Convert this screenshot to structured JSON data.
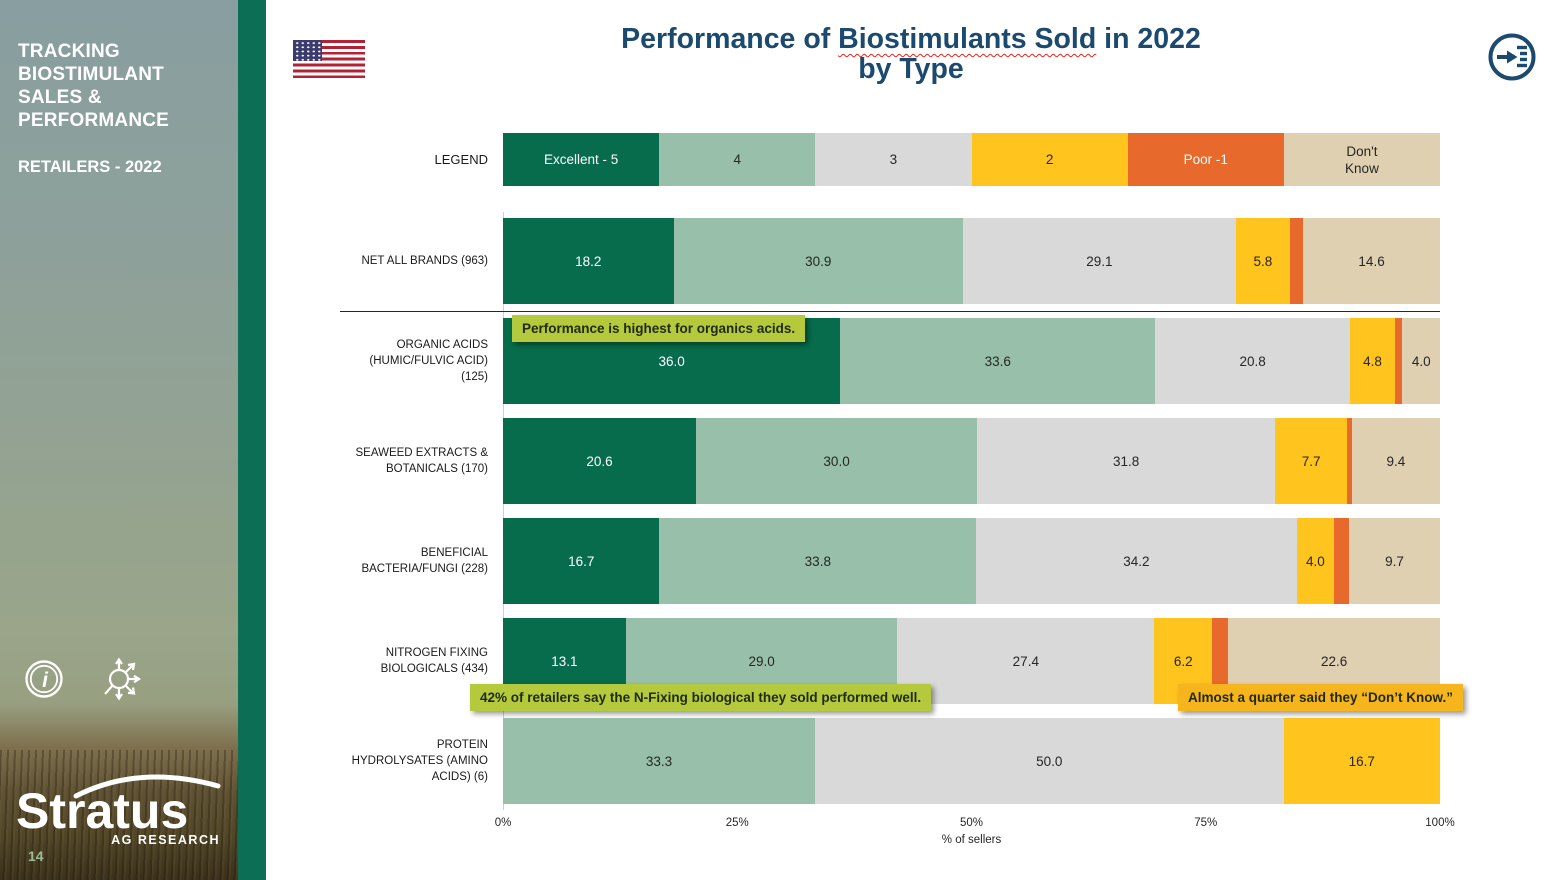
{
  "sidebar": {
    "title_lines": [
      "TRACKING",
      "BIOSTIMULANT",
      "SALES &",
      "PERFORMANCE"
    ],
    "subtitle": "RETAILERS - 2022",
    "logo_text": "Stratus",
    "logo_sub": "AG RESEARCH",
    "page_number": "14",
    "accent_color": "#0C6E54"
  },
  "header": {
    "title_pre": "Performance of ",
    "title_squiggle": "Biostimulants Sold",
    "title_post": " in 2022",
    "title_line2": "by Type",
    "title_color": "#1C4A6E",
    "flag_icon": "us-flag"
  },
  "chart_data": {
    "type": "bar",
    "stacked": true,
    "orientation": "horizontal",
    "title": "Performance of Biostimulants Sold in 2022 by Type",
    "xlabel": "% of sellers",
    "xlim": [
      0,
      100
    ],
    "x_ticks": [
      {
        "label": "0%",
        "pct": 0
      },
      {
        "label": "25%",
        "pct": 25
      },
      {
        "label": "50%",
        "pct": 50
      },
      {
        "label": "75%",
        "pct": 75
      },
      {
        "label": "100%",
        "pct": 100
      }
    ],
    "legend_label": "LEGEND",
    "legend": [
      {
        "key": "excellent",
        "label": "Excellent - 5",
        "color": "#076C4B",
        "text_color": "#FFFFFF"
      },
      {
        "key": "four",
        "label": "4",
        "color": "#98BFA9",
        "text_color": "#262626"
      },
      {
        "key": "three",
        "label": "3",
        "color": "#D9D9D9",
        "text_color": "#262626"
      },
      {
        "key": "two",
        "label": "2",
        "color": "#FFC41E",
        "text_color": "#262626"
      },
      {
        "key": "poor",
        "label": "Poor -1",
        "color": "#E8692C",
        "text_color": "#FFFFFF"
      },
      {
        "key": "dont_know",
        "label": "Don't\nKnow",
        "color": "#DFD0B2",
        "text_color": "#262626"
      }
    ],
    "rows": [
      {
        "label_lines": [
          "NET ALL BRANDS (963)"
        ],
        "segments": [
          {
            "key": "excellent",
            "value": 18.2,
            "text": "18.2"
          },
          {
            "key": "four",
            "value": 30.9,
            "text": "30.9"
          },
          {
            "key": "three",
            "value": 29.1,
            "text": "29.1"
          },
          {
            "key": "two",
            "value": 5.8,
            "text": "5.8"
          },
          {
            "key": "poor",
            "value": 1.4,
            "text": ""
          },
          {
            "key": "dont_know",
            "value": 14.6,
            "text": "14.6"
          }
        ]
      },
      {
        "label_lines": [
          "ORGANIC ACIDS",
          "(HUMIC/FULVIC ACID)",
          "(125)"
        ],
        "segments": [
          {
            "key": "excellent",
            "value": 36.0,
            "text": "36.0"
          },
          {
            "key": "four",
            "value": 33.6,
            "text": "33.6"
          },
          {
            "key": "three",
            "value": 20.8,
            "text": "20.8"
          },
          {
            "key": "two",
            "value": 4.8,
            "text": "4.8"
          },
          {
            "key": "poor",
            "value": 0.8,
            "text": ""
          },
          {
            "key": "dont_know",
            "value": 4.0,
            "text": "4.0"
          }
        ]
      },
      {
        "label_lines": [
          "SEAWEED EXTRACTS &",
          "BOTANICALS (170)"
        ],
        "segments": [
          {
            "key": "excellent",
            "value": 20.6,
            "text": "20.6"
          },
          {
            "key": "four",
            "value": 30.0,
            "text": "30.0"
          },
          {
            "key": "three",
            "value": 31.8,
            "text": "31.8"
          },
          {
            "key": "two",
            "value": 7.7,
            "text": "7.7"
          },
          {
            "key": "poor",
            "value": 0.5,
            "text": ""
          },
          {
            "key": "dont_know",
            "value": 9.4,
            "text": "9.4"
          }
        ]
      },
      {
        "label_lines": [
          "BENEFICIAL",
          "BACTERIA/FUNGI (228)"
        ],
        "segments": [
          {
            "key": "excellent",
            "value": 16.7,
            "text": "16.7"
          },
          {
            "key": "four",
            "value": 33.8,
            "text": "33.8"
          },
          {
            "key": "three",
            "value": 34.2,
            "text": "34.2"
          },
          {
            "key": "two",
            "value": 4.0,
            "text": "4.0"
          },
          {
            "key": "poor",
            "value": 1.6,
            "text": ""
          },
          {
            "key": "dont_know",
            "value": 9.7,
            "text": "9.7"
          }
        ]
      },
      {
        "label_lines": [
          "NITROGEN FIXING",
          "BIOLOGICALS (434)"
        ],
        "segments": [
          {
            "key": "excellent",
            "value": 13.1,
            "text": "13.1"
          },
          {
            "key": "four",
            "value": 29.0,
            "text": "29.0"
          },
          {
            "key": "three",
            "value": 27.4,
            "text": "27.4"
          },
          {
            "key": "two",
            "value": 6.2,
            "text": "6.2"
          },
          {
            "key": "poor",
            "value": 1.7,
            "text": ""
          },
          {
            "key": "dont_know",
            "value": 22.6,
            "text": "22.6"
          }
        ]
      },
      {
        "label_lines": [
          "PROTEIN",
          "HYDROLYSATES (AMINO",
          "ACIDS) (6)"
        ],
        "segments": [
          {
            "key": "four",
            "value": 33.3,
            "text": "33.3"
          },
          {
            "key": "three",
            "value": 50.0,
            "text": "50.0"
          },
          {
            "key": "two",
            "value": 16.7,
            "text": "16.7"
          }
        ]
      }
    ]
  },
  "callouts": [
    {
      "text": "Performance is highest for organics acids.",
      "style": "green"
    },
    {
      "text": "42% of retailers say the N-Fixing biological they sold performed well.",
      "style": "green"
    },
    {
      "text": "Almost a quarter said they  “Don’t Know.”",
      "style": "gold"
    }
  ]
}
